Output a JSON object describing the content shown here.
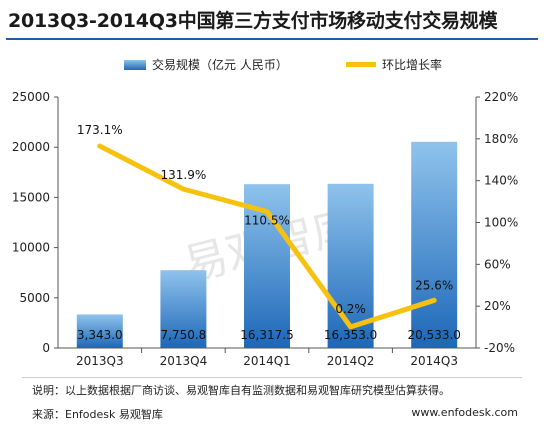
{
  "chart_data": {
    "type": "bar",
    "title": "2013Q3-2014Q3中国第三方支付市场移动支付交易规模",
    "categories": [
      "2013Q3",
      "2013Q4",
      "2014Q1",
      "2014Q2",
      "2014Q3"
    ],
    "series": [
      {
        "name": "交易规模（亿元 人民币）",
        "type": "bar",
        "axis": "left",
        "values": [
          3343.0,
          7750.8,
          16317.5,
          16353.0,
          20533.0
        ],
        "labels": [
          "3,343.0",
          "7,750.8",
          "16,317.5",
          "16,353.0",
          "20,533.0"
        ]
      },
      {
        "name": "环比增长率",
        "type": "line",
        "axis": "right",
        "values": [
          173.1,
          131.9,
          110.5,
          0.2,
          25.6
        ],
        "labels": [
          "173.1%",
          "131.9%",
          "110.5%",
          "0.2%",
          "25.6%"
        ]
      }
    ],
    "ylim": [
      0,
      25000
    ],
    "yticks": [
      "0",
      "5000",
      "10000",
      "15000",
      "20000",
      "25000"
    ],
    "y2lim": [
      -20,
      220
    ],
    "y2ticks": [
      "-20%",
      "20%",
      "60%",
      "100%",
      "140%",
      "180%",
      "220%"
    ],
    "legend_position": "top",
    "grid": false,
    "colors": {
      "bar_top": "#8fc3ec",
      "bar_bottom": "#1d67b8",
      "line": "#f6c20f"
    }
  },
  "footer": {
    "note": "说明：以上数据根据厂商访谈、易观智库自有监测数据和易观智库研究模型估算获得。",
    "source": "来源：Enfodesk 易观智库",
    "website": "www.enfodesk.com"
  },
  "watermark": "易观智库"
}
